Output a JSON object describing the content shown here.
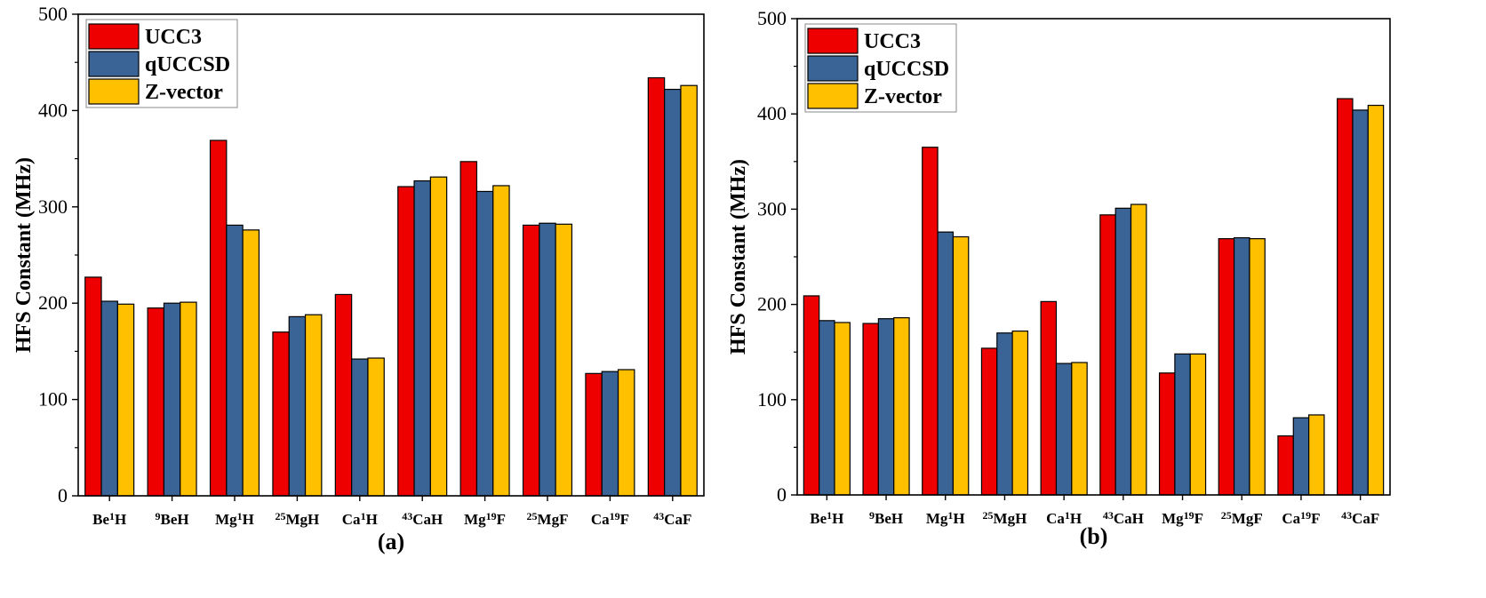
{
  "colors": {
    "UCC3": "#ee0000",
    "qUCCSD": "#3b6496",
    "Z-vector": "#ffc000"
  },
  "chart_data": [
    {
      "type": "bar",
      "panel": "(a)",
      "ylabel": "HFS Constant (MHz)",
      "ylim": [
        0,
        500
      ],
      "yticks": [
        0,
        100,
        200,
        300,
        400,
        500
      ],
      "legend_position": "top-left",
      "categories": [
        {
          "pre": "",
          "base1": "Be",
          "sup": "1",
          "base2": "H"
        },
        {
          "pre": "9",
          "base1": "BeH",
          "sup": "",
          "base2": ""
        },
        {
          "pre": "",
          "base1": "Mg",
          "sup": "1",
          "base2": "H"
        },
        {
          "pre": "25",
          "base1": "MgH",
          "sup": "",
          "base2": ""
        },
        {
          "pre": "",
          "base1": "Ca",
          "sup": "1",
          "base2": "H"
        },
        {
          "pre": "43",
          "base1": "CaH",
          "sup": "",
          "base2": ""
        },
        {
          "pre": "",
          "base1": "Mg",
          "sup": "19",
          "base2": "F"
        },
        {
          "pre": "25",
          "base1": "MgF",
          "sup": "",
          "base2": ""
        },
        {
          "pre": "",
          "base1": "Ca",
          "sup": "19",
          "base2": "F"
        },
        {
          "pre": "43",
          "base1": "CaF",
          "sup": "",
          "base2": ""
        }
      ],
      "series": [
        {
          "name": "UCC3",
          "values": [
            227,
            195,
            369,
            170,
            209,
            321,
            347,
            281,
            127,
            434
          ]
        },
        {
          "name": "qUCCSD",
          "values": [
            202,
            200,
            281,
            186,
            142,
            327,
            316,
            283,
            129,
            422
          ]
        },
        {
          "name": "Z-vector",
          "values": [
            199,
            201,
            276,
            188,
            143,
            331,
            322,
            282,
            131,
            426
          ]
        }
      ]
    },
    {
      "type": "bar",
      "panel": "(b)",
      "ylabel": "HFS Constant (MHz)",
      "ylim": [
        0,
        500
      ],
      "yticks": [
        0,
        100,
        200,
        300,
        400,
        500
      ],
      "legend_position": "top-left",
      "categories": [
        {
          "pre": "",
          "base1": "Be",
          "sup": "1",
          "base2": "H"
        },
        {
          "pre": "9",
          "base1": "BeH",
          "sup": "",
          "base2": ""
        },
        {
          "pre": "",
          "base1": "Mg",
          "sup": "1",
          "base2": "H"
        },
        {
          "pre": "25",
          "base1": "MgH",
          "sup": "",
          "base2": ""
        },
        {
          "pre": "",
          "base1": "Ca",
          "sup": "1",
          "base2": "H"
        },
        {
          "pre": "43",
          "base1": "CaH",
          "sup": "",
          "base2": ""
        },
        {
          "pre": "",
          "base1": "Mg",
          "sup": "19",
          "base2": "F"
        },
        {
          "pre": "25",
          "base1": "MgF",
          "sup": "",
          "base2": ""
        },
        {
          "pre": "",
          "base1": "Ca",
          "sup": "19",
          "base2": "F"
        },
        {
          "pre": "43",
          "base1": "CaF",
          "sup": "",
          "base2": ""
        }
      ],
      "series": [
        {
          "name": "UCC3",
          "values": [
            209,
            180,
            365,
            154,
            203,
            294,
            128,
            269,
            62,
            416
          ]
        },
        {
          "name": "qUCCSD",
          "values": [
            183,
            185,
            276,
            170,
            138,
            301,
            148,
            270,
            81,
            404
          ]
        },
        {
          "name": "Z-vector",
          "values": [
            181,
            186,
            271,
            172,
            139,
            305,
            148,
            269,
            84,
            409
          ]
        }
      ]
    }
  ]
}
